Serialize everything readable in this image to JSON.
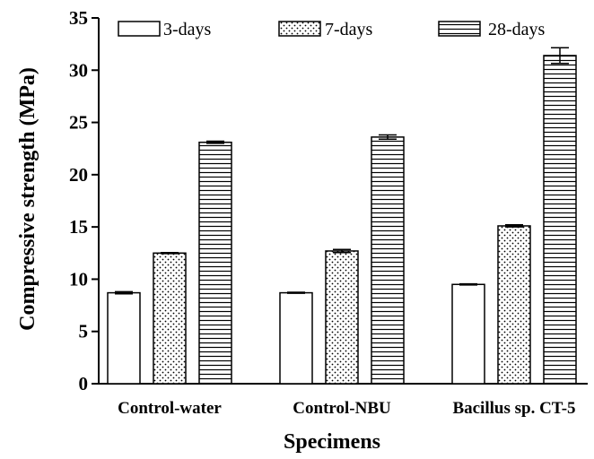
{
  "chart_data": {
    "type": "bar",
    "title": "",
    "xlabel": "Specimens",
    "ylabel": "Compressive strength (MPa)",
    "ylim": [
      0,
      35
    ],
    "yticks": [
      0,
      5,
      10,
      15,
      20,
      25,
      30,
      35
    ],
    "grid": false,
    "legend_position": "top",
    "categories": [
      "Control-water",
      "Control-NBU",
      "Bacillus sp. CT-5"
    ],
    "series": [
      {
        "name": "3-days",
        "pattern": "blank",
        "values": [
          8.7,
          8.7,
          9.5
        ],
        "errors": [
          0.1,
          0.05,
          0.05
        ]
      },
      {
        "name": "7-days",
        "pattern": "dots",
        "values": [
          12.5,
          12.7,
          15.1
        ],
        "errors": [
          0.05,
          0.15,
          0.1
        ]
      },
      {
        "name": "28-days",
        "pattern": "horizontal-lines",
        "values": [
          23.1,
          23.6,
          31.4
        ],
        "errors": [
          0.1,
          0.2,
          0.75
        ]
      }
    ],
    "colors": {
      "outline": "#000000",
      "fill": "#ffffff"
    }
  }
}
